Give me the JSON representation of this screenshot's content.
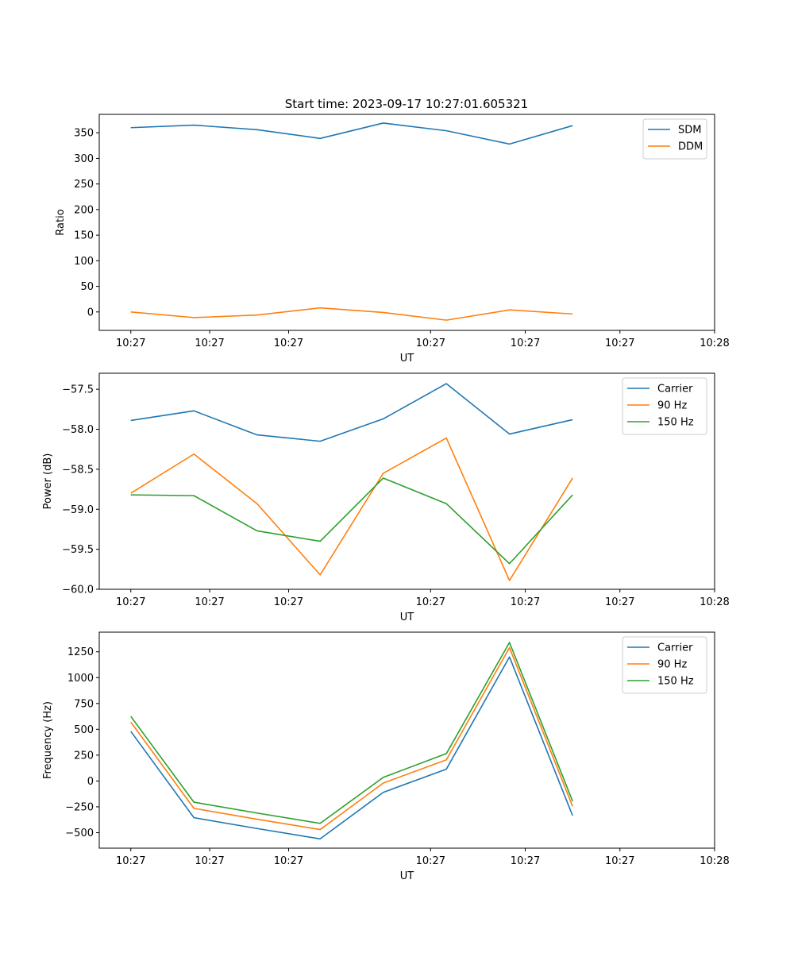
{
  "figure": {
    "title": "Start time: 2023-09-17 10:27:01.605321"
  },
  "chart_data": [
    {
      "type": "line",
      "x": [
        0,
        1,
        2,
        3,
        4,
        5,
        6,
        7
      ],
      "xlim": [
        -0.5,
        9.25
      ],
      "xticks": [
        -0.0,
        1.25,
        2.5,
        4.75,
        6.25,
        7.75,
        9.25
      ],
      "xtick_labels": [
        "10:27",
        "10:27",
        "10:27",
        "10:27",
        "10:27",
        "10:27",
        "10:28"
      ],
      "xlabel": "UT",
      "ylabel": "Ratio",
      "ylim": [
        -36,
        386
      ],
      "yticks": [
        0,
        50,
        100,
        150,
        200,
        250,
        300,
        350
      ],
      "ytick_labels": [
        "0",
        "50",
        "100",
        "150",
        "200",
        "250",
        "300",
        "350"
      ],
      "legend_position": "top-right",
      "series": [
        {
          "name": "SDM",
          "color": "#1f77b4",
          "values": [
            360,
            365,
            356,
            339,
            369,
            354,
            328,
            364
          ]
        },
        {
          "name": "DDM",
          "color": "#ff7f0e",
          "values": [
            0,
            -11,
            -6,
            8,
            -1,
            -16,
            4,
            -4
          ]
        }
      ]
    },
    {
      "type": "line",
      "x": [
        0,
        1,
        2,
        3,
        4,
        5,
        6,
        7
      ],
      "xlim": [
        -0.5,
        9.25
      ],
      "xticks": [
        -0.0,
        1.25,
        2.5,
        4.75,
        6.25,
        7.75,
        9.25
      ],
      "xtick_labels": [
        "10:27",
        "10:27",
        "10:27",
        "10:27",
        "10:27",
        "10:27",
        "10:28"
      ],
      "xlabel": "UT",
      "ylabel": "Power (dB)",
      "ylim": [
        -60.0,
        -57.3
      ],
      "yticks": [
        -60.0,
        -59.5,
        -59.0,
        -58.5,
        -58.0,
        -57.5
      ],
      "ytick_labels": [
        "−60.0",
        "−59.5",
        "−59.0",
        "−58.5",
        "−58.0",
        "−57.5"
      ],
      "legend_position": "top-right",
      "series": [
        {
          "name": "Carrier",
          "color": "#1f77b4",
          "values": [
            -57.89,
            -57.77,
            -58.07,
            -58.15,
            -57.87,
            -57.43,
            -58.06,
            -57.88
          ]
        },
        {
          "name": "90 Hz",
          "color": "#ff7f0e",
          "values": [
            -58.8,
            -58.31,
            -58.93,
            -59.82,
            -58.55,
            -58.11,
            -59.89,
            -58.61
          ]
        },
        {
          "name": "150 Hz",
          "color": "#2ca02c",
          "values": [
            -58.82,
            -58.83,
            -59.27,
            -59.4,
            -58.61,
            -58.93,
            -59.68,
            -58.82
          ]
        }
      ]
    },
    {
      "type": "line",
      "x": [
        0,
        1,
        2,
        3,
        4,
        5,
        6,
        7
      ],
      "xlim": [
        -0.5,
        9.25
      ],
      "xticks": [
        -0.0,
        1.25,
        2.5,
        4.75,
        6.25,
        7.75,
        9.25
      ],
      "xtick_labels": [
        "10:27",
        "10:27",
        "10:27",
        "10:27",
        "10:27",
        "10:27",
        "10:28"
      ],
      "xlabel": "UT",
      "ylabel": "Frequency (Hz)",
      "ylim": [
        -650,
        1440
      ],
      "yticks": [
        -500,
        -250,
        0,
        250,
        500,
        750,
        1000,
        1250
      ],
      "ytick_labels": [
        "−500",
        "−250",
        "0",
        "250",
        "500",
        "750",
        "1000",
        "1250"
      ],
      "legend_position": "top-right",
      "series": [
        {
          "name": "Carrier",
          "color": "#1f77b4",
          "values": [
            480,
            -355,
            -460,
            -560,
            -110,
            115,
            1200,
            -335
          ]
        },
        {
          "name": "90 Hz",
          "color": "#ff7f0e",
          "values": [
            570,
            -265,
            -370,
            -470,
            -20,
            205,
            1290,
            -245
          ]
        },
        {
          "name": "150 Hz",
          "color": "#2ca02c",
          "values": [
            625,
            -205,
            -310,
            -410,
            35,
            265,
            1340,
            -195
          ]
        }
      ]
    }
  ]
}
